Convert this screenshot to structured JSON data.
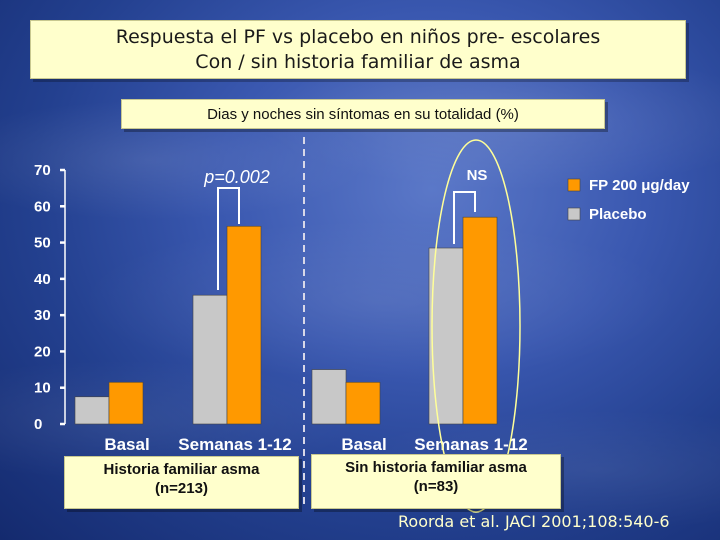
{
  "title": {
    "line1": "Respuesta el PF vs placebo en niños pre- escolares",
    "line2": "Con / sin historia familiar de asma"
  },
  "chart_data": {
    "type": "bar",
    "title": "Dias y noches sin síntomas en su totalidad (%)",
    "ylim": [
      0,
      70
    ],
    "yticks": [
      0,
      10,
      20,
      30,
      40,
      50,
      60,
      70
    ],
    "categories": [
      "Basal",
      "Semanas 1-12",
      "Basal",
      "Semanas 1-12"
    ],
    "groups": [
      {
        "label_line1": "Historia familiar asma",
        "label_line2": "(n=213)",
        "categories": [
          0,
          1
        ]
      },
      {
        "label_line1": "Sin historia familiar asma",
        "label_line2": "(n=83)",
        "categories": [
          2,
          3
        ]
      }
    ],
    "series": [
      {
        "name": "Placebo",
        "color": "#c8c8c8",
        "values": [
          7.5,
          35.5,
          15,
          48.5
        ]
      },
      {
        "name": "FP 200 μg/day",
        "color": "#ff9900",
        "values": [
          11.5,
          54.5,
          11.5,
          57
        ]
      }
    ],
    "annotations": [
      {
        "text": "p=0.002",
        "category": 1
      },
      {
        "text": "NS",
        "category": 3
      }
    ],
    "legend_position": "top-right",
    "grid": false
  },
  "citation": "Roorda et al. JACI 2001;108:540-6"
}
